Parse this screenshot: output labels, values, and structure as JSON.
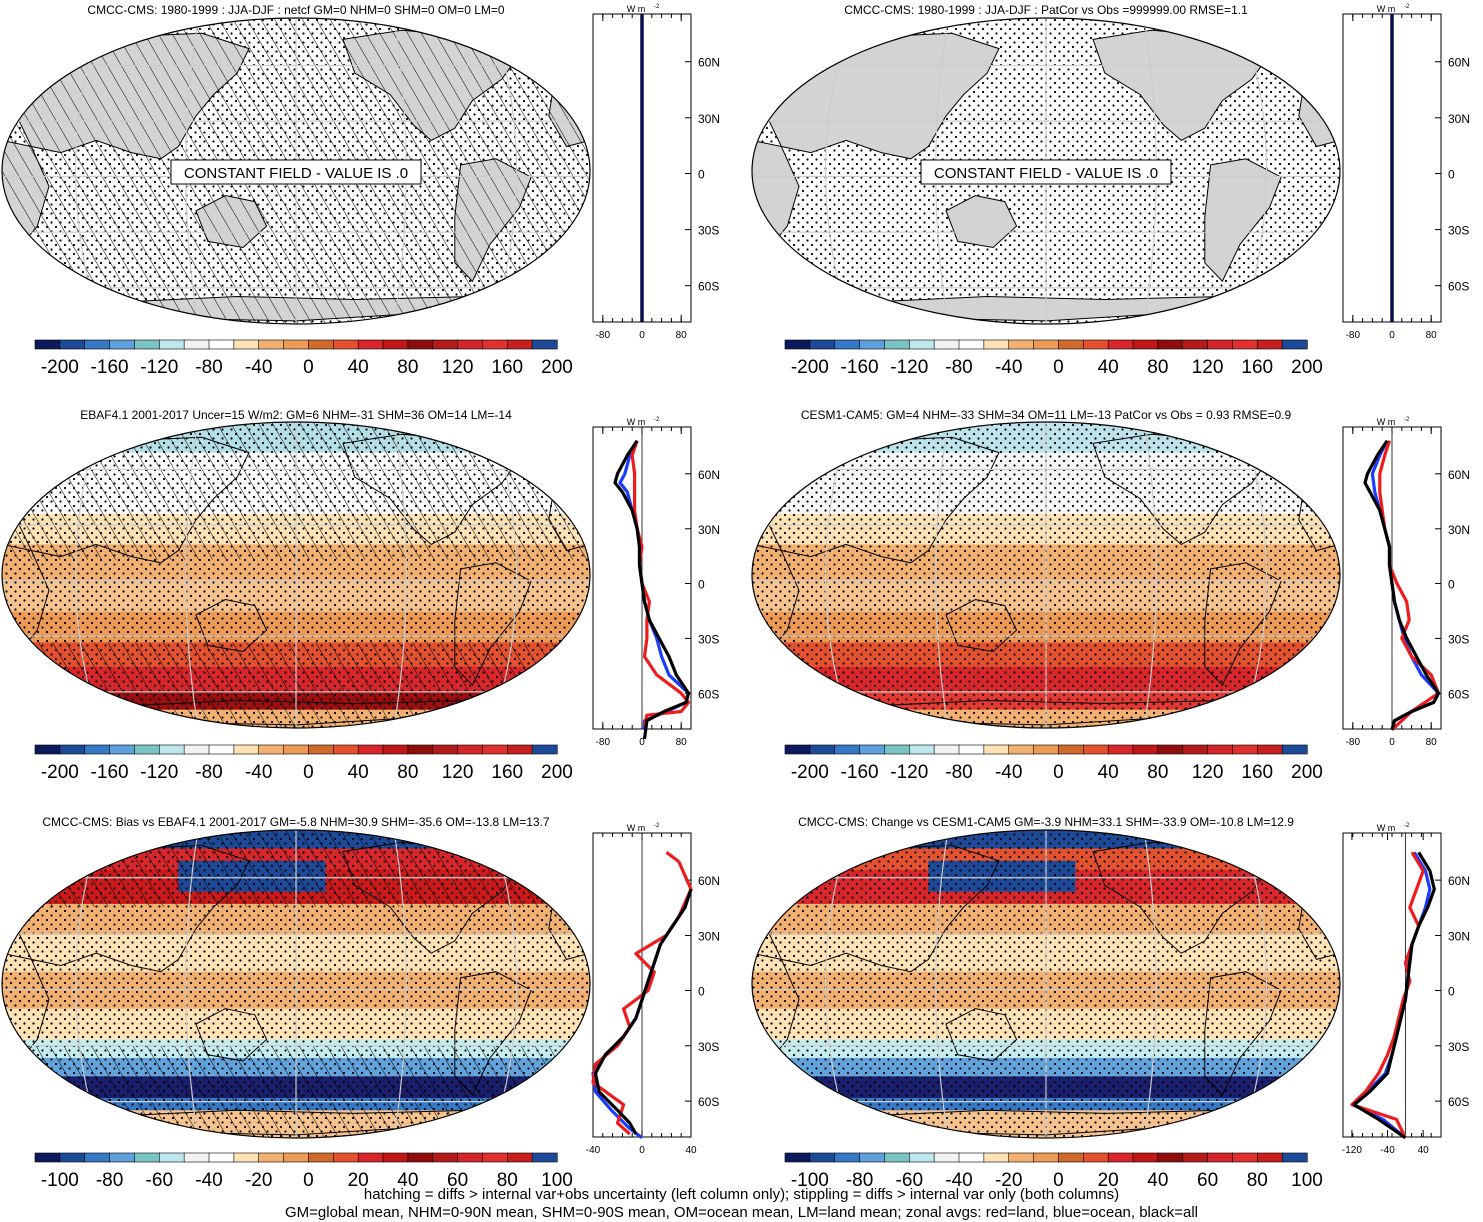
{
  "colors": {
    "land": "#d3d3d3",
    "cbar_200": [
      "#181c6a",
      "#1f4f9a",
      "#3a7ec8",
      "#6aa8de",
      "#7cc7c8",
      "#b8e3e6",
      "#f2f2f2",
      "#ffffff",
      "#fbe3b8",
      "#f4b97e",
      "#ea8c3a",
      "#d06a2a",
      "#e83030",
      "#d01818",
      "#8a0c0c",
      "#c81e1e",
      "#e03030",
      "#ff2020",
      "#1f4f9a"
    ],
    "ocean_mean": "#f1c79d",
    "sh_red": "#e23a32",
    "bias_blue": "#174a9a"
  },
  "panels": [
    {
      "title": "CMCC-CMS: 1980-1999 : JJA-DJF : netcf GM=0 NHM=0 SHM=0 OM=0 LM=0",
      "constant_label": "CONSTANT FIELD - VALUE IS .0",
      "cbar_labels": [
        "-200",
        "-160",
        "-120",
        "-80",
        "-40",
        "0",
        "40",
        "80",
        "120",
        "160",
        "200"
      ],
      "lat_labels": [
        "60N",
        "30N",
        "0",
        "30S",
        "60S"
      ],
      "x_ticks": [
        "-80",
        "0",
        "80"
      ],
      "unit": "W m",
      "unit_exp": "-2"
    },
    {
      "title": "CMCC-CMS: 1980-1999 : JJA-DJF : PatCor vs Obs =999999.00 RMSE=1.1",
      "constant_label": "CONSTANT FIELD - VALUE IS .0",
      "cbar_labels": [
        "-200",
        "-160",
        "-120",
        "-80",
        "-40",
        "0",
        "40",
        "80",
        "120",
        "160",
        "200"
      ],
      "lat_labels": [
        "60N",
        "30N",
        "0",
        "30S",
        "60S"
      ],
      "x_ticks": [
        "-80",
        "0",
        "80"
      ],
      "unit": "W m",
      "unit_exp": "-2"
    },
    {
      "title": "EBAF4.1 2001-2017 Uncer=15 W/m2: GM=6 NHM=-31 SHM=36 OM=14 LM=-14",
      "cbar_labels": [
        "-200",
        "-160",
        "-120",
        "-80",
        "-40",
        "0",
        "40",
        "80",
        "120",
        "160",
        "200"
      ],
      "lat_labels": [
        "60N",
        "30N",
        "0",
        "30S",
        "60S"
      ],
      "x_ticks": [
        "-80",
        "0",
        "80"
      ],
      "unit": "W m",
      "unit_exp": "-2"
    },
    {
      "title": "CESM1-CAM5: GM=4 NHM=-33 SHM=34 OM=11 LM=-13 PatCor vs Obs = 0.93 RMSE=0.9",
      "cbar_labels": [
        "-200",
        "-160",
        "-120",
        "-80",
        "-40",
        "0",
        "40",
        "80",
        "120",
        "160",
        "200"
      ],
      "lat_labels": [
        "60N",
        "30N",
        "0",
        "30S",
        "60S"
      ],
      "x_ticks": [
        "-80",
        "0",
        "80"
      ],
      "unit": "W m",
      "unit_exp": "-2"
    },
    {
      "title": "CMCC-CMS: Bias vs EBAF4.1 2001-2017 GM=-5.8 NHM=30.9 SHM=-35.6 OM=-13.8 LM=13.7",
      "cbar_labels": [
        "-100",
        "-80",
        "-60",
        "-40",
        "-20",
        "0",
        "20",
        "40",
        "60",
        "80",
        "100"
      ],
      "lat_labels": [
        "60N",
        "30N",
        "0",
        "30S",
        "60S"
      ],
      "x_ticks": [
        "-40",
        "0",
        "40"
      ],
      "unit": "W m",
      "unit_exp": "-2"
    },
    {
      "title": "CMCC-CMS: Change vs CESM1-CAM5 GM=-3.9 NHM=33.1 SHM=-33.9 OM=-10.8 LM=12.9",
      "cbar_labels": [
        "-100",
        "-80",
        "-60",
        "-40",
        "-20",
        "0",
        "20",
        "40",
        "60",
        "80",
        "100"
      ],
      "lat_labels": [
        "60N",
        "30N",
        "0",
        "30S",
        "60S"
      ],
      "x_ticks": [
        "-120",
        "-40",
        "40"
      ],
      "unit": "W m",
      "unit_exp": "-2"
    }
  ],
  "chart_data": [
    {
      "type": "heatmap",
      "title": "CMCC-CMS: 1980-1999 : JJA-DJF : netcf GM=0 NHM=0 SHM=0 OM=0 LM=0",
      "annotation": "CONSTANT FIELD - VALUE IS .0",
      "colorbar_ticks": [
        -200,
        -160,
        -120,
        -80,
        -40,
        0,
        40,
        80,
        120,
        160,
        200
      ],
      "zonal_avg": {
        "x_range": [
          -100,
          100
        ],
        "x_ticks": [
          -80,
          0,
          80
        ],
        "lat_ticks": [
          "60N",
          "30N",
          "0",
          "30S",
          "60S"
        ],
        "series": [
          {
            "lat": [
              -90,
              90
            ],
            "x": [
              0,
              0
            ]
          }
        ]
      }
    },
    {
      "type": "heatmap",
      "title": "CMCC-CMS: 1980-1999 : JJA-DJF : PatCor vs Obs =999999.00 RMSE=1.1",
      "annotation": "CONSTANT FIELD - VALUE IS .0",
      "colorbar_ticks": [
        -200,
        -160,
        -120,
        -80,
        -40,
        0,
        40,
        80,
        120,
        160,
        200
      ],
      "zonal_avg": {
        "x_range": [
          -100,
          100
        ],
        "x_ticks": [
          -80,
          0,
          80
        ],
        "lat_ticks": [
          "60N",
          "30N",
          "0",
          "30S",
          "60S"
        ],
        "series": [
          {
            "lat": [
              -90,
              90
            ],
            "x": [
              0,
              0
            ]
          }
        ]
      }
    },
    {
      "type": "heatmap",
      "title": "EBAF4.1 2001-2017 Uncer=15 W/m2: GM=6 NHM=-31 SHM=36 OM=14 LM=-14",
      "colorbar_ticks": [
        -200,
        -160,
        -120,
        -80,
        -40,
        0,
        40,
        80,
        120,
        160,
        200
      ],
      "zonal_avg": {
        "x_range": [
          -100,
          100
        ],
        "x_ticks": [
          -80,
          0,
          80
        ],
        "lat_ticks": [
          "60N",
          "30N",
          "0",
          "30S",
          "60S"
        ],
        "series": [
          {
            "lat": [
              -85,
              -75,
              -70,
              -65,
              -60,
              -50,
              -40,
              -30,
              -20,
              -10,
              0,
              10,
              20,
              30,
              40,
              50,
              55,
              60,
              70,
              78
            ],
            "x": [
              5,
              10,
              45,
              90,
              95,
              70,
              55,
              35,
              15,
              5,
              0,
              -5,
              -5,
              -10,
              -20,
              -40,
              -55,
              -50,
              -30,
              -10
            ]
          },
          {
            "lat": [
              -78,
              -72,
              -70,
              -65,
              -60,
              -50,
              -40,
              -30,
              -20,
              -10,
              0,
              10,
              20,
              30,
              40,
              50,
              60,
              70,
              78
            ],
            "x": [
              5,
              10,
              80,
              95,
              80,
              30,
              5,
              10,
              10,
              15,
              0,
              -5,
              0,
              -10,
              -15,
              -15,
              -15,
              -20,
              -10
            ]
          },
          {
            "lat": [
              -80,
              -75,
              -70,
              -65,
              -60,
              -50,
              -40,
              -30,
              -20,
              -10,
              0,
              10,
              20,
              30,
              40,
              50,
              55,
              60,
              70,
              78
            ],
            "x": [
              5,
              5,
              50,
              90,
              95,
              55,
              40,
              30,
              15,
              5,
              0,
              -5,
              -5,
              -10,
              -20,
              -30,
              -45,
              -35,
              -25,
              -10
            ]
          }
        ]
      }
    },
    {
      "type": "heatmap",
      "title": "CESM1-CAM5: GM=4 NHM=-33 SHM=34 OM=11 LM=-13 PatCor vs Obs = 0.93 RMSE=0.9",
      "colorbar_ticks": [
        -200,
        -160,
        -120,
        -80,
        -40,
        0,
        40,
        80,
        120,
        160,
        200
      ],
      "zonal_avg": {
        "x_range": [
          -100,
          100
        ],
        "x_ticks": [
          -80,
          0,
          80
        ],
        "lat_ticks": [
          "60N",
          "30N",
          "0",
          "30S",
          "60S"
        ],
        "series": [
          {
            "lat": [
              -80,
              -75,
              -70,
              -65,
              -60,
              -50,
              -40,
              -30,
              -20,
              -10,
              0,
              10,
              20,
              30,
              40,
              50,
              55,
              60,
              70,
              78
            ],
            "x": [
              0,
              5,
              40,
              85,
              95,
              70,
              50,
              30,
              15,
              5,
              0,
              -5,
              -5,
              -15,
              -25,
              -45,
              -55,
              -50,
              -30,
              -10
            ]
          },
          {
            "lat": [
              -80,
              -70,
              -60,
              -50,
              -40,
              -30,
              -20,
              -10,
              0,
              10,
              20,
              30,
              40,
              50,
              60,
              70,
              78
            ],
            "x": [
              0,
              40,
              95,
              80,
              40,
              20,
              35,
              30,
              10,
              -5,
              -5,
              -15,
              -20,
              -25,
              -25,
              -15,
              -5
            ]
          },
          {
            "lat": [
              -80,
              -75,
              -70,
              -65,
              -60,
              -50,
              -40,
              -30,
              -20,
              -10,
              0,
              10,
              20,
              30,
              40,
              50,
              60,
              70,
              78
            ],
            "x": [
              0,
              5,
              40,
              85,
              95,
              60,
              40,
              25,
              15,
              5,
              0,
              -5,
              -5,
              -15,
              -25,
              -35,
              -40,
              -25,
              -10
            ]
          }
        ]
      }
    },
    {
      "type": "heatmap",
      "title": "CMCC-CMS: Bias vs EBAF4.1 2001-2017 GM=-5.8 NHM=30.9 SHM=-35.6 OM=-13.8 LM=13.7",
      "colorbar_ticks": [
        -100,
        -80,
        -60,
        -40,
        -20,
        0,
        20,
        40,
        60,
        80,
        100
      ],
      "zonal_avg": {
        "x_range": [
          -40,
          40
        ],
        "x_ticks": [
          -40,
          0,
          40
        ],
        "lat_ticks": [
          "60N",
          "30N",
          "0",
          "30S",
          "60S"
        ],
        "series": [
          {
            "lat": [
              -78,
              -72,
              -65,
              -55,
              -45,
              -35,
              -25,
              -15,
              -5,
              5,
              15,
              25,
              35,
              45,
              55
            ],
            "x": [
              -5,
              -10,
              -20,
              -35,
              -38,
              -30,
              -15,
              -5,
              0,
              5,
              10,
              15,
              25,
              35,
              40
            ]
          },
          {
            "lat": [
              -78,
              -72,
              -62,
              -50,
              -40,
              -30,
              -20,
              -10,
              0,
              10,
              20,
              30,
              40,
              55,
              70,
              75
            ],
            "x": [
              -10,
              -20,
              -15,
              -40,
              -38,
              -20,
              -10,
              -15,
              5,
              10,
              -5,
              20,
              30,
              40,
              30,
              20
            ]
          },
          {
            "lat": [
              -80,
              -75,
              -65,
              -55,
              -45,
              -35,
              -25,
              -15,
              -5,
              5,
              15,
              25,
              35,
              45,
              55
            ],
            "x": [
              0,
              -10,
              -25,
              -38,
              -40,
              -30,
              -15,
              -5,
              0,
              5,
              10,
              15,
              25,
              35,
              40
            ]
          }
        ]
      }
    },
    {
      "type": "heatmap",
      "title": "CMCC-CMS: Change vs CESM1-CAM5 GM=-3.9 NHM=33.1 SHM=-33.9 OM=-10.8 LM=12.9",
      "colorbar_ticks": [
        -100,
        -80,
        -60,
        -40,
        -20,
        0,
        20,
        40,
        60,
        80,
        100
      ],
      "zonal_avg": {
        "x_range": [
          -140,
          80
        ],
        "x_ticks": [
          -120,
          -40,
          40
        ],
        "lat_ticks": [
          "60N",
          "30N",
          "0",
          "30S",
          "60S"
        ],
        "series": [
          {
            "lat": [
              -80,
              -70,
              -62,
              -55,
              -45,
              -35,
              -25,
              -15,
              -5,
              5,
              15,
              25,
              35,
              45,
              55,
              65,
              75
            ],
            "x": [
              0,
              -60,
              -115,
              -80,
              -40,
              -30,
              -20,
              -10,
              0,
              5,
              10,
              15,
              30,
              50,
              65,
              55,
              30
            ]
          },
          {
            "lat": [
              -80,
              -70,
              -62,
              -55,
              -45,
              -35,
              -25,
              -15,
              -5,
              5,
              15,
              25,
              35,
              45,
              55,
              65,
              75
            ],
            "x": [
              0,
              -20,
              -120,
              -90,
              -60,
              -40,
              -25,
              -15,
              -5,
              10,
              0,
              15,
              30,
              10,
              25,
              40,
              15
            ]
          },
          {
            "lat": [
              -80,
              -70,
              -62,
              -55,
              -45,
              -35,
              -25,
              -15,
              -5,
              5,
              15,
              25,
              35,
              45,
              55,
              65,
              75
            ],
            "x": [
              0,
              -50,
              -118,
              -85,
              -45,
              -30,
              -20,
              -10,
              0,
              5,
              8,
              15,
              30,
              45,
              55,
              45,
              20
            ]
          }
        ]
      }
    }
  ],
  "footer": {
    "line1": "hatching = diffs > internal var+obs uncertainty (left column only); stippling = diffs > internal var only (both columns)",
    "line2": "GM=global mean, NHM=0-90N mean, SHM=0-90S mean, OM=ocean mean, LM=land mean; zonal avgs: red=land, blue=ocean, black=all"
  }
}
